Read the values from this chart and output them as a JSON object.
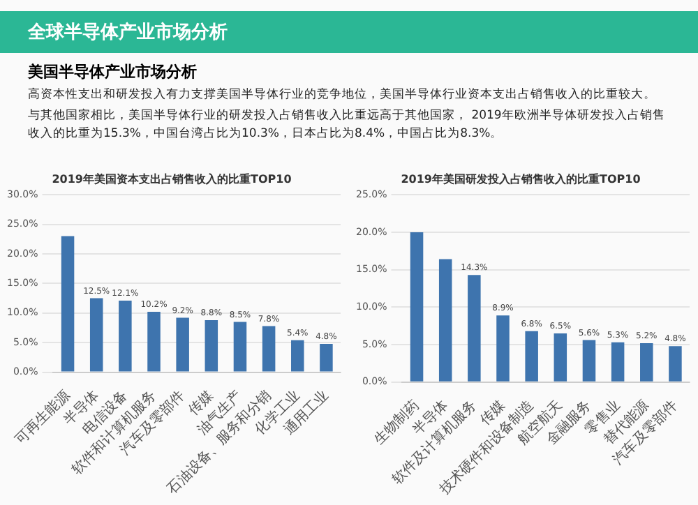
{
  "chart_data": [
    {
      "type": "other",
      "title": "全球半导体产业市场分析",
      "subtitle": "美国半导体产业市场分析",
      "annotations": [
        "高资本性支出和研发投入有力支撑美国半导体行业的竞争地位，美国半导体行业资本支出占销售收入的比重较大。",
        "与其他国家相比，美国半导体行业的研发投入占销售收入比重远高于其他国家， 2019年欧洲半导体研发投入占销售收入的比重为15.3%，中国台湾占比为10.3%，日本占比为8.4%，中国占比为8.3%。"
      ]
    },
    {
      "type": "bar",
      "title": "2019年美国资本支出占销售收入的比重TOP10",
      "categories": [
        "可再生能源",
        "半导体",
        "电信设备",
        "软件和计算机服务",
        "汽车及零部件",
        "传媒",
        "油气生产",
        "石油设备、服务和分销",
        "化学工业",
        "通用工业"
      ],
      "values": [
        23,
        12.5,
        12.1,
        10.2,
        9.2,
        8.8,
        8.5,
        7.8,
        5.4,
        4.8
      ],
      "value_labels": [
        null,
        "12.5%",
        "12.1%",
        "10.2%",
        "9.2%",
        "8.8%",
        "8.5%",
        "7.8%",
        "5.4%",
        "4.8%"
      ],
      "color": "#3e74ae",
      "ylim": [
        0,
        30
      ],
      "yticks": [
        {
          "value": 0,
          "label": "0.0%"
        },
        {
          "value": 5,
          "label": "5.0%"
        },
        {
          "value": 10,
          "label": "10.0%"
        },
        {
          "value": 15,
          "label": "15.0%"
        },
        {
          "value": 20,
          "label": "20.0%"
        },
        {
          "value": 25,
          "label": "25.0%"
        },
        {
          "value": 30,
          "label": "30.0%"
        }
      ],
      "grid": "y"
    },
    {
      "type": "bar",
      "title": "2019年美国研发投入占销售收入的比重TOP10",
      "categories": [
        "生物制药",
        "半导体",
        "软件及计算机服务",
        "传媒",
        "技术硬件和设备制造",
        "航空航天",
        "金融服务",
        "零售业",
        "替代能源",
        "汽车及零部件"
      ],
      "values": [
        20,
        16.4,
        14.3,
        8.9,
        6.8,
        6.5,
        5.6,
        5.3,
        5.2,
        4.8
      ],
      "value_labels": [
        null,
        null,
        "14.3%",
        "8.9%",
        "6.8%",
        "6.5%",
        "5.6%",
        "5.3%",
        "5.2%",
        "4.8%"
      ],
      "color": "#3e74ae",
      "ylim": [
        0,
        25
      ],
      "yticks": [
        {
          "value": 0,
          "label": "0.0%"
        },
        {
          "value": 5,
          "label": "5.0%"
        },
        {
          "value": 10,
          "label": "10.0%"
        },
        {
          "value": 15,
          "label": "15.0%"
        },
        {
          "value": 20,
          "label": "20.0%"
        },
        {
          "value": 25,
          "label": "25.0%"
        }
      ],
      "grid": "y"
    }
  ]
}
